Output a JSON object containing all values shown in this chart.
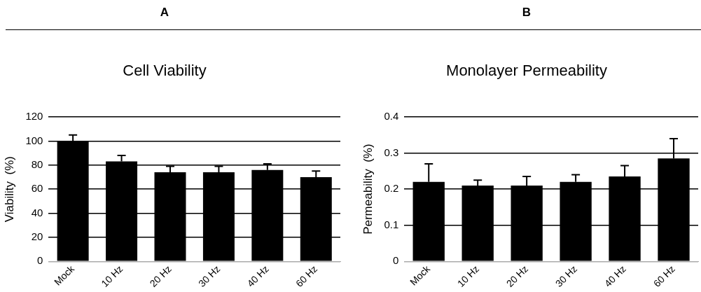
{
  "chart_data": [
    {
      "type": "bar",
      "title": "Cell Viability",
      "annotations": [
        "A"
      ],
      "ylabel": "Viability  (%)",
      "categories": [
        "Mock",
        "10 Hz",
        "20 Hz",
        "30 Hz",
        "40 Hz",
        "60 Hz"
      ],
      "values": [
        100,
        83,
        74,
        74,
        76,
        70
      ],
      "color": "#000000",
      "errors": [
        [
          100,
          105
        ],
        [
          83,
          88
        ],
        [
          74,
          79
        ],
        [
          74,
          79
        ],
        [
          76,
          81
        ],
        [
          70,
          75
        ]
      ],
      "ylim": [
        0,
        120
      ],
      "yticks": [
        0,
        20,
        40,
        60,
        80,
        100,
        120
      ],
      "grid": "y"
    },
    {
      "type": "bar",
      "title": "Monolayer Permeability",
      "annotations": [
        "B"
      ],
      "ylabel": "Permeability  (%)",
      "categories": [
        "Mock",
        "10 Hz",
        "20 Hz",
        "30 Hz",
        "40 Hz",
        "60 Hz"
      ],
      "values": [
        0.22,
        0.21,
        0.21,
        0.22,
        0.235,
        0.285
      ],
      "color": "#000000",
      "errors": [
        [
          0.22,
          0.27
        ],
        [
          0.21,
          0.225
        ],
        [
          0.21,
          0.235
        ],
        [
          0.22,
          0.24
        ],
        [
          0.235,
          0.265
        ],
        [
          0.285,
          0.34
        ]
      ],
      "ylim": [
        0,
        0.4
      ],
      "yticks": [
        0,
        0.1,
        0.2,
        0.3,
        0.4
      ],
      "grid": "y"
    }
  ]
}
